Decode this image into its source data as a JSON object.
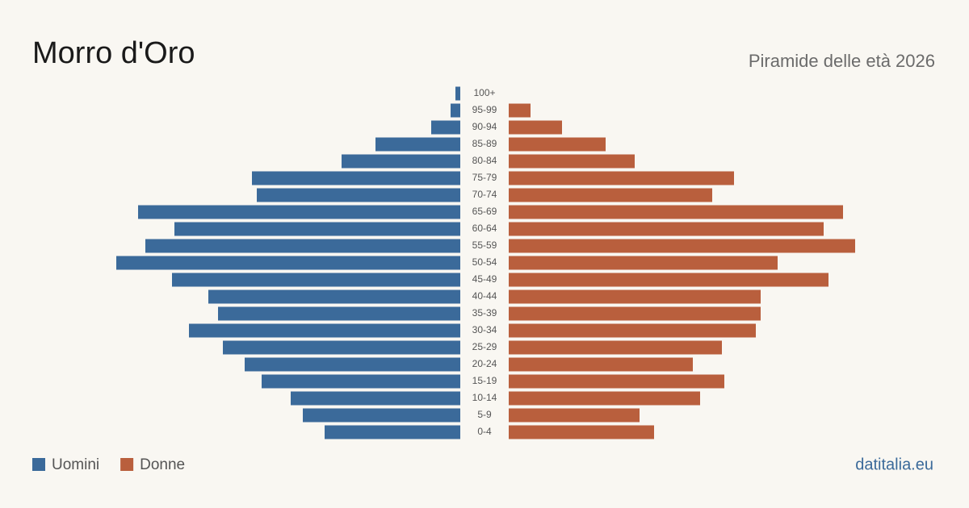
{
  "chart_data": {
    "type": "population-pyramid",
    "title": "Morro d'Oro",
    "subtitle": "Piramide delle età 2026",
    "source": "datitalia.eu",
    "categories": [
      "100+",
      "95-99",
      "90-94",
      "85-89",
      "80-84",
      "75-79",
      "70-74",
      "65-69",
      "60-64",
      "55-59",
      "50-54",
      "45-49",
      "40-44",
      "35-39",
      "30-34",
      "25-29",
      "20-24",
      "15-19",
      "10-14",
      "5-9",
      "0-4"
    ],
    "series": [
      {
        "name": "Uomini",
        "color": "#3b6a9a",
        "side": "left",
        "values": [
          2,
          4,
          12,
          35,
          49,
          86,
          84,
          133,
          118,
          130,
          142,
          119,
          104,
          100,
          112,
          98,
          89,
          82,
          70,
          65,
          56
        ]
      },
      {
        "name": "Donne",
        "color": "#b95f3d",
        "side": "right",
        "values": [
          0,
          9,
          22,
          40,
          52,
          93,
          84,
          138,
          130,
          143,
          111,
          132,
          104,
          104,
          102,
          88,
          76,
          89,
          79,
          54,
          60
        ]
      }
    ]
  }
}
